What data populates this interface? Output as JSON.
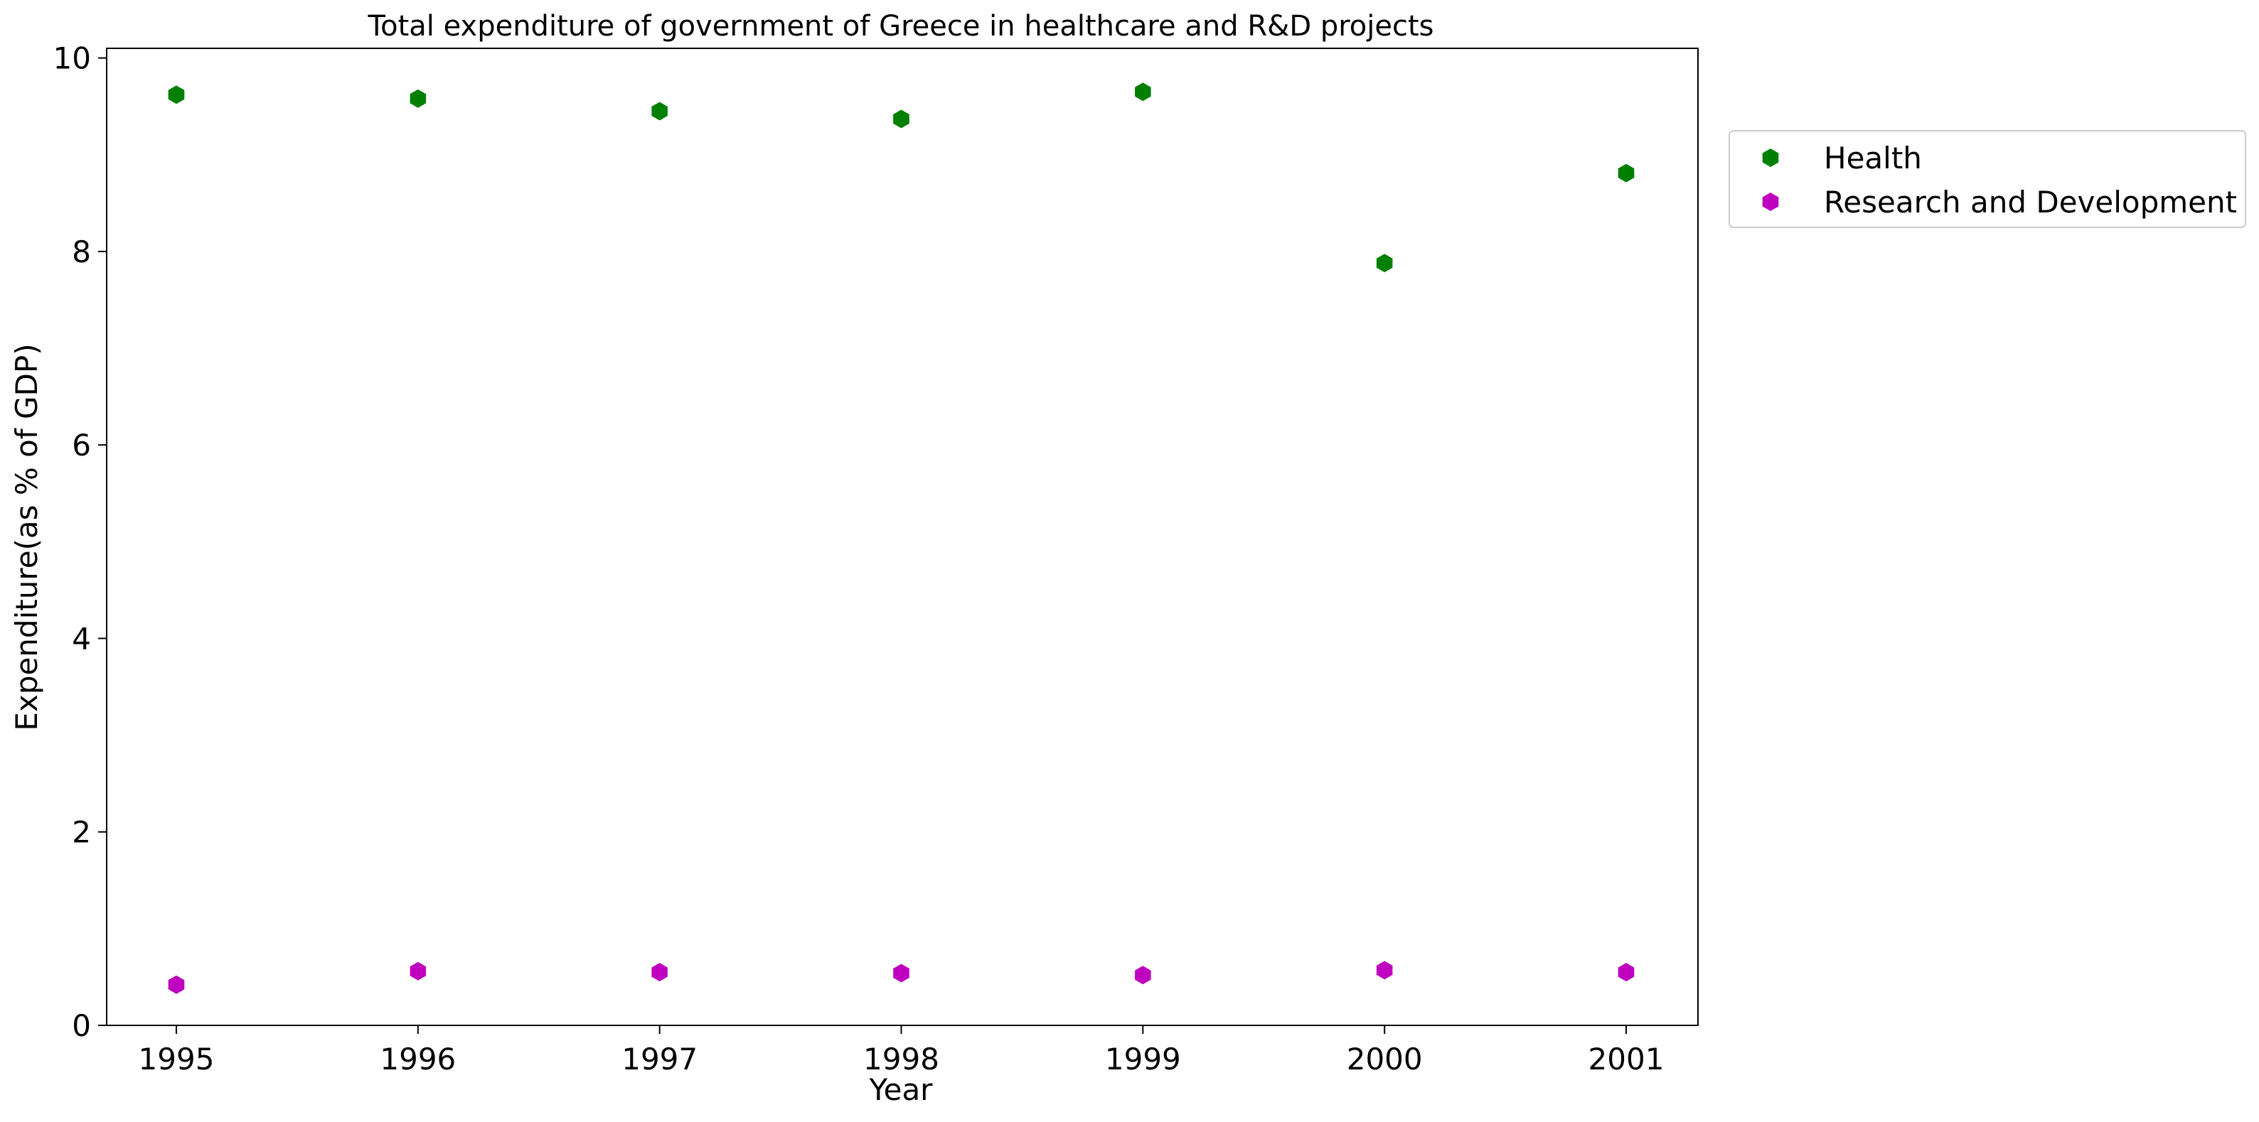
{
  "chart_data": {
    "type": "scatter",
    "title": "Total expenditure of government of Greece in healthcare and R&D projects",
    "xlabel": "Year",
    "ylabel": "Expenditure(as % of GDP)",
    "x": [
      "1995",
      "1996",
      "1997",
      "1998",
      "1999",
      "2000",
      "2001"
    ],
    "x_ticks": [
      "1995",
      "1996",
      "1997",
      "1998",
      "1999",
      "2000",
      "2001"
    ],
    "y_ticks": [
      "0",
      "2",
      "4",
      "6",
      "8",
      "10"
    ],
    "ylim": [
      0,
      10.1
    ],
    "grid": false,
    "legend_position": "outside right, top",
    "marker": "hexagon",
    "series": [
      {
        "name": "Health",
        "color": "#008000",
        "values": [
          9.62,
          9.58,
          9.45,
          9.37,
          9.65,
          7.88,
          8.81
        ]
      },
      {
        "name": "Research and Development",
        "color": "#bf00bf",
        "values": [
          0.42,
          0.56,
          0.55,
          0.54,
          0.52,
          0.57,
          0.55
        ]
      }
    ]
  }
}
